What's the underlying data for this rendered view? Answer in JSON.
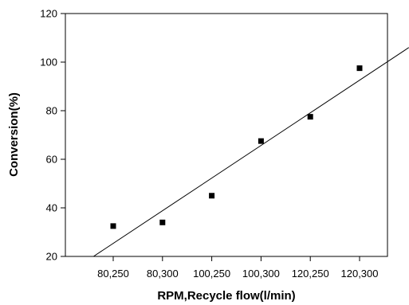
{
  "chart_data": {
    "type": "scatter",
    "title": "",
    "xlabel": "RPM,Recycle flow(l/min)",
    "ylabel": "Conversion(%)",
    "categories": [
      "80,250",
      "80,300",
      "100,250",
      "100,300",
      "120,250",
      "120,300"
    ],
    "values": [
      32.5,
      34,
      45,
      67.5,
      77.5,
      97.5
    ],
    "ylim": [
      20,
      120
    ],
    "yticks": [
      "20",
      "40",
      "60",
      "80",
      "100",
      "120"
    ],
    "trendline": {
      "from": {
        "x": 0.6,
        "y": 20
      },
      "to": {
        "x": 7.0,
        "y": 106
      }
    },
    "marker_color": "#000000",
    "line_color": "#000000",
    "grid": false,
    "legend": "none"
  }
}
